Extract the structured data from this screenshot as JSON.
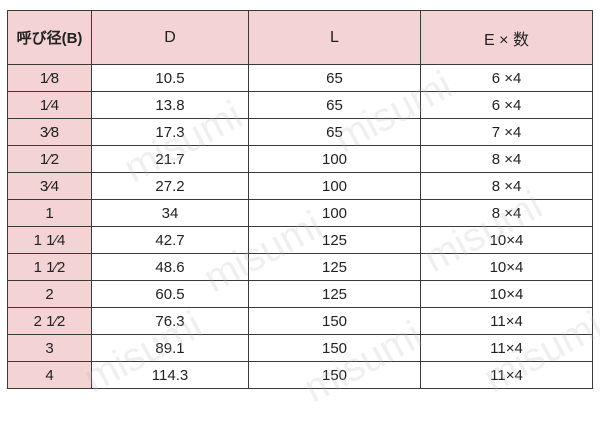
{
  "table": {
    "headers": [
      "呼び径(B)",
      "D",
      "L",
      "E × 数"
    ],
    "rows": [
      {
        "nominal": "1⁄8",
        "d": "10.5",
        "l": "65",
        "e": "6 ×4"
      },
      {
        "nominal": "1⁄4",
        "d": "13.8",
        "l": "65",
        "e": "6 ×4"
      },
      {
        "nominal": "3⁄8",
        "d": "17.3",
        "l": "65",
        "e": "7 ×4"
      },
      {
        "nominal": "1⁄2",
        "d": "21.7",
        "l": "100",
        "e": "8 ×4"
      },
      {
        "nominal": "3⁄4",
        "d": "27.2",
        "l": "100",
        "e": "8 ×4"
      },
      {
        "nominal": "1",
        "d": "34",
        "l": "100",
        "e": "8 ×4"
      },
      {
        "nominal": "1 1⁄4",
        "d": "42.7",
        "l": "125",
        "e": "10×4"
      },
      {
        "nominal": "1 1⁄2",
        "d": "48.6",
        "l": "125",
        "e": "10×4"
      },
      {
        "nominal": "2",
        "d": "60.5",
        "l": "125",
        "e": "10×4"
      },
      {
        "nominal": "2 1⁄2",
        "d": "76.3",
        "l": "150",
        "e": "11×4"
      },
      {
        "nominal": "3",
        "d": "89.1",
        "l": "150",
        "e": "11×4"
      },
      {
        "nominal": "4",
        "d": "114.3",
        "l": "150",
        "e": "11×4"
      }
    ]
  },
  "watermark": "misumi",
  "colors": {
    "header_bg": "#f3d3d4",
    "border": "#3a3a3a"
  }
}
